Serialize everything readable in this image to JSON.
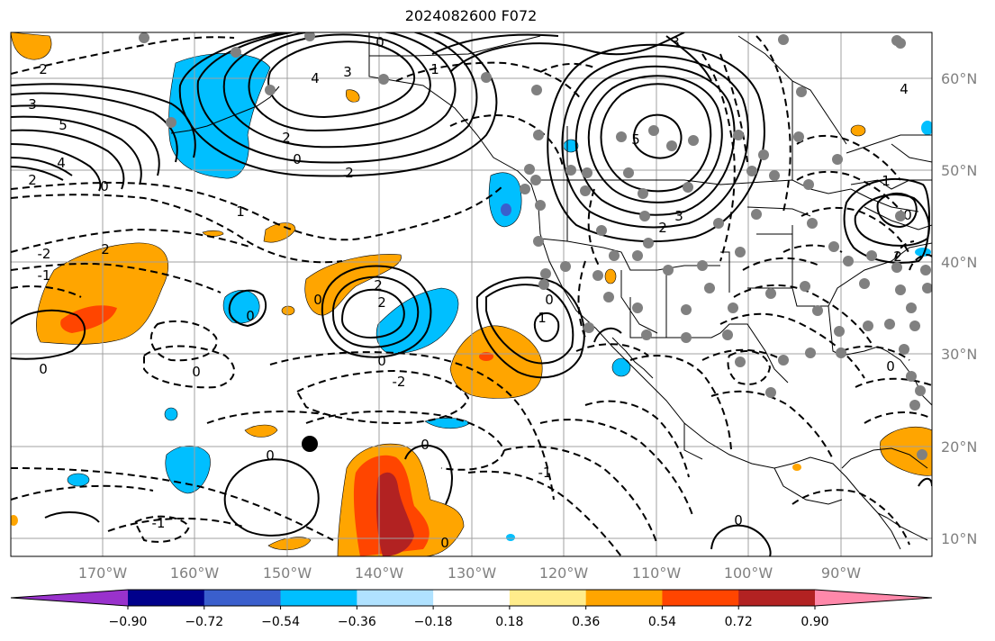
{
  "title": "2024082600 F072",
  "map": {
    "lon_range": [
      -180,
      -80
    ],
    "lat_range": [
      8,
      65
    ],
    "lon_ticks": [
      "170°W",
      "160°W",
      "150°W",
      "140°W",
      "130°W",
      "120°W",
      "110°W",
      "100°W",
      "90°W"
    ],
    "lat_ticks": [
      "60°N",
      "50°N",
      "40°N",
      "30°N",
      "20°N",
      "10°N"
    ],
    "contour_labels": [
      "0",
      "1",
      "2",
      "3",
      "4",
      "5",
      "-1",
      "-2"
    ],
    "gridlines": true
  },
  "colorbar": {
    "tick_labels": [
      "−0.90",
      "−0.72",
      "−0.54",
      "−0.36",
      "−0.18",
      "0.18",
      "0.36",
      "0.54",
      "0.72",
      "0.90"
    ],
    "colors": [
      "#9932cc",
      "#00008b",
      "#3a5fcd",
      "#00bfff",
      "#b0e2ff",
      "#ffffff",
      "#ffec8b",
      "#ffa500",
      "#ff4500",
      "#b22222",
      "#ff88aa"
    ],
    "extend": "both"
  },
  "colors": {
    "station_dot": "#808080",
    "grid": "#a0a0a0",
    "contour": "#000000"
  }
}
